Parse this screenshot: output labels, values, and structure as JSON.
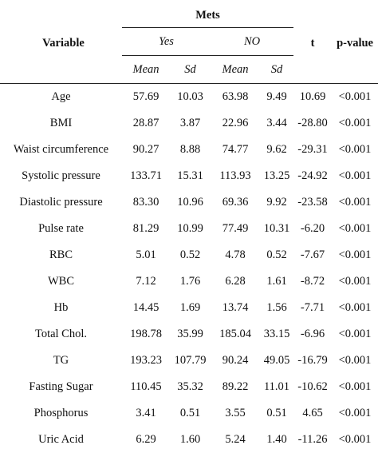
{
  "header": {
    "variable": "Variable",
    "mets": "Mets",
    "yes": "Yes",
    "no": "NO",
    "mean": "Mean",
    "sd": "Sd",
    "t": "t",
    "pvalue": "p-value"
  },
  "rows": [
    {
      "variable": "Age",
      "yes_mean": "57.69",
      "yes_sd": "10.03",
      "no_mean": "63.98",
      "no_sd": "9.49",
      "t": "10.69",
      "p": "<0.001"
    },
    {
      "variable": "BMI",
      "yes_mean": "28.87",
      "yes_sd": "3.87",
      "no_mean": "22.96",
      "no_sd": "3.44",
      "t": "-28.80",
      "p": "<0.001"
    },
    {
      "variable": "Waist circumference",
      "yes_mean": "90.27",
      "yes_sd": "8.88",
      "no_mean": "74.77",
      "no_sd": "9.62",
      "t": "-29.31",
      "p": "<0.001"
    },
    {
      "variable": "Systolic pressure",
      "yes_mean": "133.71",
      "yes_sd": "15.31",
      "no_mean": "113.93",
      "no_sd": "13.25",
      "t": "-24.92",
      "p": "<0.001"
    },
    {
      "variable": "Diastolic pressure",
      "yes_mean": "83.30",
      "yes_sd": "10.96",
      "no_mean": "69.36",
      "no_sd": "9.92",
      "t": "-23.58",
      "p": "<0.001"
    },
    {
      "variable": "Pulse rate",
      "yes_mean": "81.29",
      "yes_sd": "10.99",
      "no_mean": "77.49",
      "no_sd": "10.31",
      "t": "-6.20",
      "p": "<0.001"
    },
    {
      "variable": "RBC",
      "yes_mean": "5.01",
      "yes_sd": "0.52",
      "no_mean": "4.78",
      "no_sd": "0.52",
      "t": "-7.67",
      "p": "<0.001"
    },
    {
      "variable": "WBC",
      "yes_mean": "7.12",
      "yes_sd": "1.76",
      "no_mean": "6.28",
      "no_sd": "1.61",
      "t": "-8.72",
      "p": "<0.001"
    },
    {
      "variable": "Hb",
      "yes_mean": "14.45",
      "yes_sd": "1.69",
      "no_mean": "13.74",
      "no_sd": "1.56",
      "t": "-7.71",
      "p": "<0.001"
    },
    {
      "variable": "Total Chol.",
      "yes_mean": "198.78",
      "yes_sd": "35.99",
      "no_mean": "185.04",
      "no_sd": "33.15",
      "t": "-6.96",
      "p": "<0.001"
    },
    {
      "variable": "TG",
      "yes_mean": "193.23",
      "yes_sd": "107.79",
      "no_mean": "90.24",
      "no_sd": "49.05",
      "t": "-16.79",
      "p": "<0.001"
    },
    {
      "variable": "Fasting Sugar",
      "yes_mean": "110.45",
      "yes_sd": "35.32",
      "no_mean": "89.22",
      "no_sd": "11.01",
      "t": "-10.62",
      "p": "<0.001"
    },
    {
      "variable": "Phosphorus",
      "yes_mean": "3.41",
      "yes_sd": "0.51",
      "no_mean": "3.55",
      "no_sd": "0.51",
      "t": "4.65",
      "p": "<0.001"
    },
    {
      "variable": "Uric Acid",
      "yes_mean": "6.29",
      "yes_sd": "1.60",
      "no_mean": "5.24",
      "no_sd": "1.40",
      "t": "-11.26",
      "p": "<0.001"
    }
  ]
}
